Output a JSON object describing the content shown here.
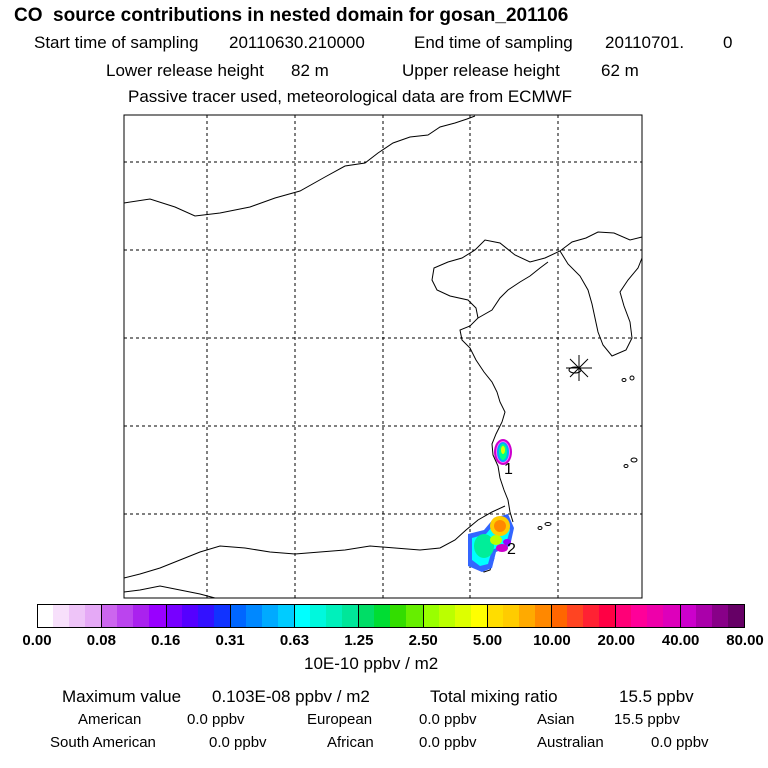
{
  "header": {
    "title": "CO  source contributions in nested domain for gosan_201106",
    "start_label": "Start time of sampling",
    "start_value": "20110630.210000",
    "end_label": "End time of sampling",
    "end_value": "20110701.",
    "end_suffix": "0",
    "lower_label": "Lower release height",
    "lower_value": "82 m",
    "upper_label": "Upper release height",
    "upper_value": "62 m",
    "note": "Passive tracer used, meteorological data are from ECMWF"
  },
  "map": {
    "receptor_symbol": "asterisk",
    "source_labels": [
      "1",
      "2"
    ]
  },
  "colorbar": {
    "ticks": [
      "0.00",
      "0.08",
      "0.16",
      "0.31",
      "0.63",
      "1.25",
      "2.50",
      "5.00",
      "10.00",
      "20.00",
      "40.00",
      "80.00"
    ],
    "units": "10E-10 ppbv / m2",
    "colors": [
      "#ffffff",
      "#f7e0fb",
      "#eec4f8",
      "#e5a9f6",
      "#cc66ee",
      "#bb44ee",
      "#aa22ee",
      "#9900ff",
      "#7700ff",
      "#5500ff",
      "#3311ff",
      "#1133ff",
      "#0066ff",
      "#0088ff",
      "#00aaff",
      "#00ccff",
      "#00ffff",
      "#00f8dd",
      "#00f0bb",
      "#00e699",
      "#00dd66",
      "#00dd33",
      "#33dd00",
      "#66ee00",
      "#99ff00",
      "#bbff00",
      "#ddff00",
      "#ffff00",
      "#ffdd00",
      "#ffcc00",
      "#ffaa00",
      "#ff8800",
      "#ff6600",
      "#ff4422",
      "#ff2233",
      "#ff0044",
      "#ff0077",
      "#ff0099",
      "#ee00aa",
      "#dd00bb",
      "#cc00cc",
      "#aa00aa",
      "#880088",
      "#660066"
    ]
  },
  "stats": {
    "max_label": "Maximum value",
    "max_value": "0.103E-08 ppbv / m2",
    "total_label": "Total mixing ratio",
    "total_value": "15.5 ppbv",
    "regions": [
      {
        "name": "American",
        "value": "0.0 ppbv"
      },
      {
        "name": "European",
        "value": "0.0 ppbv"
      },
      {
        "name": "Asian",
        "value": "15.5 ppbv"
      },
      {
        "name": "South American",
        "value": "0.0 ppbv"
      },
      {
        "name": "African",
        "value": "0.0 ppbv"
      },
      {
        "name": "Australian",
        "value": "0.0 ppbv"
      }
    ]
  }
}
